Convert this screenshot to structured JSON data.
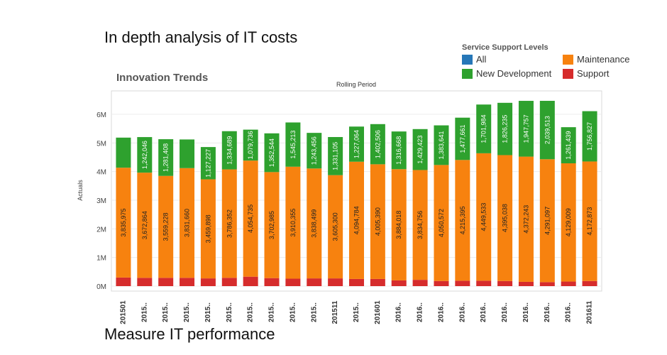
{
  "headlines": {
    "top": "In depth analysis of IT costs",
    "bottom": "Measure IT performance"
  },
  "legend": {
    "title": "Service Support Levels",
    "items": [
      {
        "label": "All",
        "color": "#2677b8"
      },
      {
        "label": "Maintenance",
        "color": "#f7820f"
      },
      {
        "label": "New Development",
        "color": "#2ea12e"
      },
      {
        "label": "Support",
        "color": "#d62c2c"
      }
    ]
  },
  "chart_data": {
    "type": "bar",
    "stacked": true,
    "title": "Innovation Trends",
    "subtitle": "Rolling Period",
    "xlabel": "",
    "ylabel": "Actuals",
    "ylim": [
      0,
      6500000
    ],
    "yticks": [
      0,
      1000000,
      2000000,
      3000000,
      4000000,
      5000000,
      6000000
    ],
    "ytick_labels": [
      "0M",
      "1M",
      "2M",
      "3M",
      "4M",
      "5M",
      "6M"
    ],
    "grid": true,
    "legend_position": "top-right",
    "categories": [
      "201501",
      "2015..",
      "2015..",
      "2015..",
      "2015..",
      "2015..",
      "2015..",
      "2015..",
      "2015..",
      "2015..",
      "201511",
      "2015..",
      "201601",
      "2016..",
      "2016..",
      "2016..",
      "2016..",
      "2016..",
      "2016..",
      "2016..",
      "2016..",
      "2016..",
      "201611"
    ],
    "series": [
      {
        "name": "Support",
        "color": "#d62c2c",
        "values": [
          300000,
          290000,
          290000,
          290000,
          270000,
          290000,
          330000,
          280000,
          260000,
          270000,
          270000,
          250000,
          250000,
          200000,
          220000,
          180000,
          190000,
          190000,
          180000,
          150000,
          140000,
          160000,
          180000
        ]
      },
      {
        "name": "Maintenance",
        "color": "#f7820f",
        "values": [
          3835975,
          3672864,
          3559228,
          3831660,
          3459898,
          3786352,
          4054735,
          3702985,
          3910355,
          3838499,
          3605300,
          4094784,
          4005390,
          3884018,
          3834756,
          4050572,
          4215395,
          4449533,
          4395038,
          4372243,
          4291097,
          4129009,
          4172873
        ],
        "labels": [
          "3,835,975",
          "3,672,864",
          "3,559,228",
          "3,831,660",
          "3,459,898",
          "3,786,352",
          "4,054,735",
          "3,702,985",
          "3,910,355",
          "3,838,499",
          "3,605,300",
          "4,094,784",
          "4,005,390",
          "3,884,018",
          "3,834,756",
          "4,050,572",
          "4,215,395",
          "4,449,533",
          "4,395,038",
          "4,372,243",
          "4,291,097",
          "4,129,009",
          "4,172,873"
        ]
      },
      {
        "name": "New Development",
        "color": "#2ea12e",
        "values": [
          1050000,
          1242046,
          1281408,
          1000000,
          1127227,
          1334689,
          1079736,
          1352544,
          1545213,
          1243456,
          1331105,
          1227064,
          1402506,
          1316668,
          1429423,
          1383641,
          1477661,
          1701984,
          1826235,
          1947757,
          2039513,
          1261439,
          1756827
        ],
        "labels": [
          "",
          "1,242,046",
          "1,281,408",
          "",
          "1,127,227",
          "1,334,689",
          "1,079,736",
          "1,352,544",
          "1,545,213",
          "1,243,456",
          "1,331,105",
          "1,227,064",
          "1,402,506",
          "1,316,668",
          "1,429,423",
          "1,383,641",
          "1,477,661",
          "1,701,984",
          "1,826,235",
          "1,947,757",
          "2,039,513",
          "1,261,439",
          "1,756,827"
        ]
      }
    ]
  }
}
